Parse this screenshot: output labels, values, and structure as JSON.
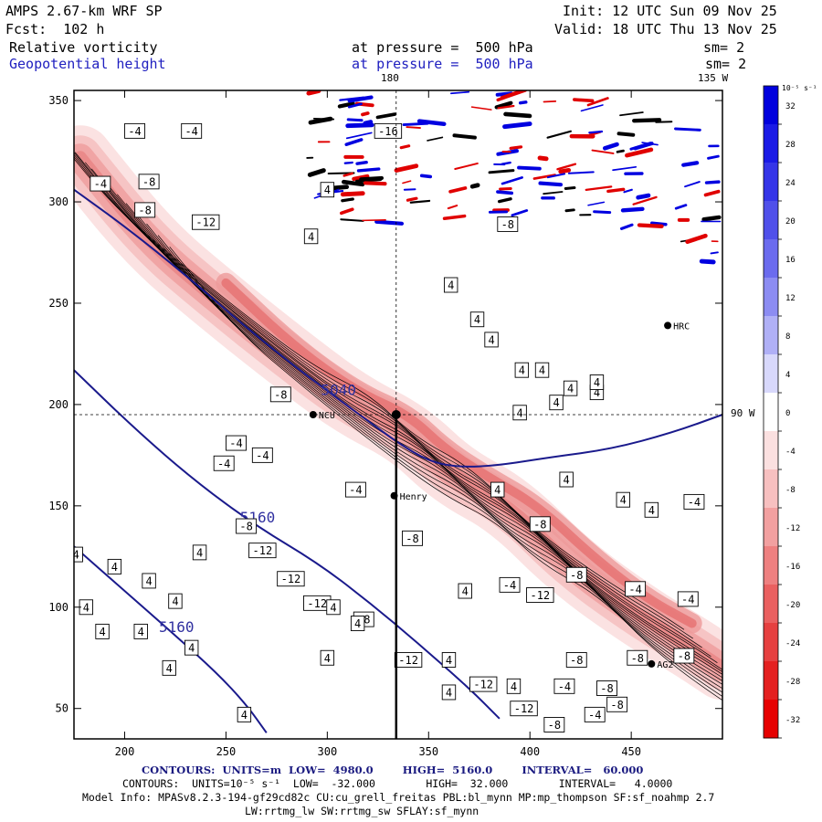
{
  "header": {
    "model": "AMPS 2.67-km WRF SP",
    "init": "Init: 12 UTC Sun 09 Nov 25",
    "fcst": "Fcst:  102 h",
    "valid": "Valid: 18 UTC Thu 13 Nov 25",
    "field1": "Relative vorticity",
    "field1_level": "at pressure =  500 hPa",
    "field1_sm": "sm= 2",
    "field2": "Geopotential height",
    "field2_level": "at pressure =  500 hPa",
    "field2_sm": "sm= 2"
  },
  "colors": {
    "height_contour": "#1a1a8c",
    "vort_positive": "#0000ee",
    "vort_negative": "#ee0000"
  },
  "chart_data": {
    "type": "contour-map",
    "x_ticks": [
      200,
      250,
      300,
      350,
      400,
      450
    ],
    "y_ticks": [
      50,
      100,
      150,
      200,
      250,
      300,
      350
    ],
    "xlim": [
      175,
      495
    ],
    "ylim": [
      35,
      355
    ],
    "meridian_labels": {
      "lon180": "180",
      "lon135w": "135 W",
      "lon90w": "90 W"
    },
    "colorbar": {
      "unit": "10⁻⁵ s⁻¹",
      "levels": [
        32,
        28,
        24,
        20,
        16,
        12,
        8,
        4,
        0,
        -4,
        -8,
        -12,
        -16,
        -20,
        -24,
        -28,
        -32
      ],
      "labels": [
        "32",
        "28",
        "24",
        "20",
        "16",
        "12",
        "8",
        "4",
        "0",
        "-4",
        "-8",
        "-12",
        "-16",
        "-20",
        "-24",
        "-28",
        "-32"
      ],
      "colors": [
        "#0000dd",
        "#1a1ae6",
        "#3535e8",
        "#5050ea",
        "#6b6bee",
        "#8c8cf2",
        "#b0b0f6",
        "#d8d8fb",
        "#ffffff",
        "#fbe0e0",
        "#f7c0c0",
        "#f2a0a0",
        "#ee8080",
        "#ea6060",
        "#e64040",
        "#e42020",
        "#e60000"
      ]
    },
    "height_contours": [
      {
        "value": 5040,
        "label": "5040",
        "points": [
          [
            175,
            306
          ],
          [
            200,
            288
          ],
          [
            230,
            264
          ],
          [
            260,
            238
          ],
          [
            285,
            218
          ],
          [
            305,
            203
          ],
          [
            320,
            192
          ],
          [
            335,
            181
          ],
          [
            350,
            172
          ],
          [
            365,
            169
          ],
          [
            385,
            170
          ],
          [
            410,
            174
          ],
          [
            440,
            178
          ],
          [
            470,
            186
          ],
          [
            495,
            195
          ]
        ]
      },
      {
        "value": 5160,
        "label": "5160",
        "points": [
          [
            175,
            217
          ],
          [
            205,
            188
          ],
          [
            235,
            162
          ],
          [
            265,
            140
          ],
          [
            295,
            122
          ],
          [
            320,
            103
          ],
          [
            345,
            82
          ],
          [
            370,
            60
          ],
          [
            385,
            45
          ]
        ]
      },
      {
        "value": 5160,
        "label": "5160",
        "points": [
          [
            175,
            130
          ],
          [
            200,
            108
          ],
          [
            225,
            86
          ],
          [
            245,
            68
          ],
          [
            260,
            52
          ],
          [
            270,
            38
          ]
        ]
      }
    ],
    "vorticity_band": {
      "label_axis": [
        [
          178,
          322
        ],
        [
          212,
          280
        ],
        [
          245,
          252
        ],
        [
          280,
          224
        ],
        [
          312,
          200
        ],
        [
          340,
          186
        ],
        [
          362,
          165
        ],
        [
          390,
          150
        ],
        [
          420,
          120
        ],
        [
          455,
          95
        ],
        [
          480,
          80
        ],
        [
          495,
          70
        ]
      ],
      "inner_axis": [
        [
          250,
          260
        ],
        [
          283,
          229
        ],
        [
          315,
          206
        ],
        [
          340,
          195
        ],
        [
          358,
          178
        ],
        [
          378,
          165
        ],
        [
          404,
          150
        ],
        [
          432,
          124
        ],
        [
          458,
          104
        ],
        [
          480,
          92
        ]
      ]
    },
    "stations": [
      {
        "name": "NCU",
        "x": 293,
        "y": 195
      },
      {
        "name": "Henry",
        "x": 333,
        "y": 155
      },
      {
        "name": "HRC",
        "x": 468,
        "y": 239
      },
      {
        "name": "AG2",
        "x": 460,
        "y": 72
      }
    ],
    "contour_labels": [
      {
        "t": "-4",
        "x": 205,
        "y": 335
      },
      {
        "t": "-4",
        "x": 233,
        "y": 335
      },
      {
        "t": "-4",
        "x": 188,
        "y": 309
      },
      {
        "t": "-8",
        "x": 212,
        "y": 310
      },
      {
        "t": "-8",
        "x": 210,
        "y": 296
      },
      {
        "t": "-12",
        "x": 240,
        "y": 290
      },
      {
        "t": "4",
        "x": 300,
        "y": 306
      },
      {
        "t": "4",
        "x": 292,
        "y": 283
      },
      {
        "t": "-16",
        "x": 330,
        "y": 335
      },
      {
        "t": "-8",
        "x": 389,
        "y": 289
      },
      {
        "t": "4",
        "x": 361,
        "y": 259
      },
      {
        "t": "4",
        "x": 374,
        "y": 242
      },
      {
        "t": "4",
        "x": 381,
        "y": 232
      },
      {
        "t": "4",
        "x": 396,
        "y": 217
      },
      {
        "t": "4",
        "x": 406,
        "y": 217
      },
      {
        "t": "4",
        "x": 420,
        "y": 208
      },
      {
        "t": "4",
        "x": 433,
        "y": 206
      },
      {
        "t": "4",
        "x": 413,
        "y": 201
      },
      {
        "t": "-8",
        "x": 277,
        "y": 205
      },
      {
        "t": "-4",
        "x": 255,
        "y": 181
      },
      {
        "t": "-4",
        "x": 268,
        "y": 175
      },
      {
        "t": "-4",
        "x": 249,
        "y": 171
      },
      {
        "t": "-4",
        "x": 314,
        "y": 158
      },
      {
        "t": "-8",
        "x": 260,
        "y": 140
      },
      {
        "t": "-12",
        "x": 268,
        "y": 128
      },
      {
        "t": "-12",
        "x": 282,
        "y": 114
      },
      {
        "t": "-12",
        "x": 295,
        "y": 102
      },
      {
        "t": "-8",
        "x": 318,
        "y": 94
      },
      {
        "t": "-8",
        "x": 342,
        "y": 134
      },
      {
        "t": "-8",
        "x": 405,
        "y": 141
      },
      {
        "t": "-8",
        "x": 423,
        "y": 116
      },
      {
        "t": "-12",
        "x": 405,
        "y": 106
      },
      {
        "t": "-4",
        "x": 390,
        "y": 111
      },
      {
        "t": "4",
        "x": 368,
        "y": 108
      },
      {
        "t": "4",
        "x": 303,
        "y": 100
      },
      {
        "t": "4",
        "x": 300,
        "y": 75
      },
      {
        "t": "4",
        "x": 315,
        "y": 92
      },
      {
        "t": "-12",
        "x": 340,
        "y": 74
      },
      {
        "t": "4",
        "x": 360,
        "y": 74
      },
      {
        "t": "-12",
        "x": 377,
        "y": 62
      },
      {
        "t": "4",
        "x": 392,
        "y": 61
      },
      {
        "t": "-12",
        "x": 397,
        "y": 50
      },
      {
        "t": "-8",
        "x": 412,
        "y": 42
      },
      {
        "t": "-4",
        "x": 452,
        "y": 109
      },
      {
        "t": "-4",
        "x": 478,
        "y": 104
      },
      {
        "t": "-8",
        "x": 453,
        "y": 75
      },
      {
        "t": "-8",
        "x": 476,
        "y": 76
      },
      {
        "t": "-8",
        "x": 423,
        "y": 74
      },
      {
        "t": "-8",
        "x": 438,
        "y": 60
      },
      {
        "t": "-8",
        "x": 443,
        "y": 52
      },
      {
        "t": "-4",
        "x": 417,
        "y": 61
      },
      {
        "t": "-4",
        "x": 432,
        "y": 47
      },
      {
        "t": "-4",
        "x": 481,
        "y": 152
      },
      {
        "t": "4",
        "x": 446,
        "y": 153
      },
      {
        "t": "4",
        "x": 460,
        "y": 148
      },
      {
        "t": "4",
        "x": 433,
        "y": 211
      },
      {
        "t": "4",
        "x": 418,
        "y": 163
      },
      {
        "t": "4",
        "x": 395,
        "y": 196
      },
      {
        "t": "4",
        "x": 384,
        "y": 158
      },
      {
        "t": "4",
        "x": 176,
        "y": 126
      },
      {
        "t": "4",
        "x": 195,
        "y": 120
      },
      {
        "t": "4",
        "x": 212,
        "y": 113
      },
      {
        "t": "4",
        "x": 225,
        "y": 103
      },
      {
        "t": "4",
        "x": 237,
        "y": 127
      },
      {
        "t": "4",
        "x": 181,
        "y": 100
      },
      {
        "t": "4",
        "x": 189,
        "y": 88
      },
      {
        "t": "4",
        "x": 208,
        "y": 88
      },
      {
        "t": "4",
        "x": 222,
        "y": 70
      },
      {
        "t": "4",
        "x": 259,
        "y": 47
      },
      {
        "t": "4",
        "x": 233,
        "y": 80
      },
      {
        "t": "4",
        "x": 360,
        "y": 58
      }
    ],
    "cross_hair": {
      "x": 334,
      "y": 195
    }
  },
  "footer": {
    "line1": "CONTOURS:  UNITS=m  LOW=  4980.0        HIGH=  5160.0        INTERVAL=   60.000",
    "line2": "CONTOURS:  UNITS=10⁻⁵ s⁻¹  LOW=  -32.000        HIGH=  32.000        INTERVAL=   4.0000",
    "line3": "Model Info: MPASv8.2.3-194-gf29cd82c CU:cu_grell_freitas PBL:bl_mynn MP:mp_thompson SF:sf_noahmp 2.7",
    "line4": "LW:rrtmg_lw SW:rrtmg_sw SFLAY:sf_mynn"
  }
}
